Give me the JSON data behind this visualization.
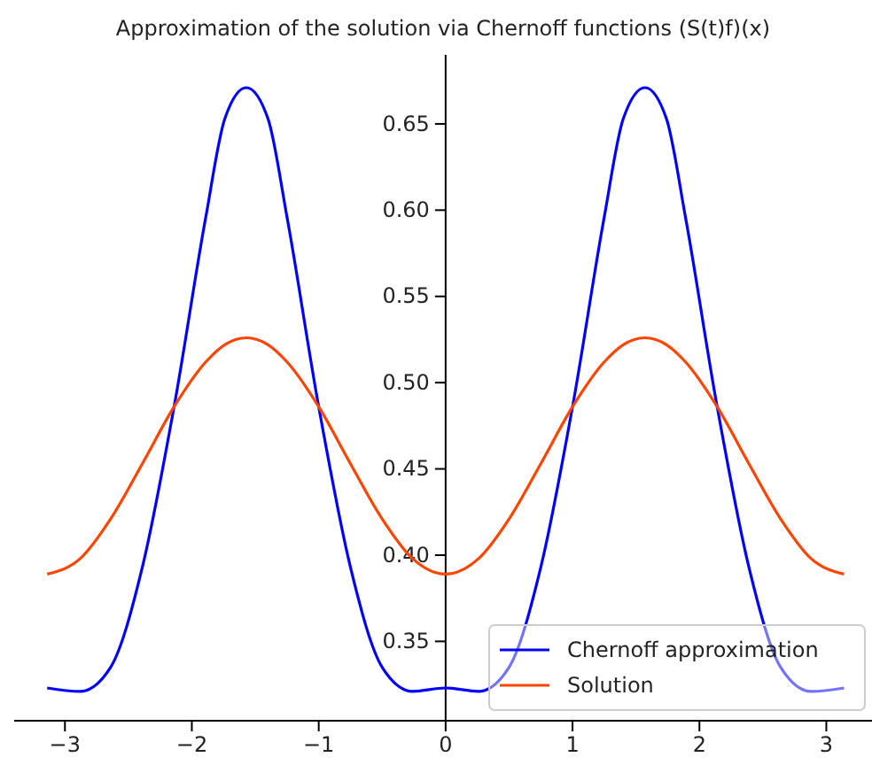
{
  "chart_data": {
    "type": "line",
    "title": "Approximation of the solution via Chernoff functions (S(t)f)(x)",
    "x": [
      -3.14,
      -2.88,
      -2.64,
      -2.39,
      -2.14,
      -1.89,
      -1.74,
      -1.571,
      -1.4,
      -1.25,
      -1.0,
      -0.75,
      -0.5,
      -0.26,
      0,
      0.26,
      0.5,
      0.75,
      1.0,
      1.25,
      1.4,
      1.571,
      1.74,
      1.89,
      2.14,
      2.39,
      2.64,
      2.88,
      3.14
    ],
    "series": [
      {
        "name": "Chernoff approximation",
        "color": "#0000ff",
        "values": [
          0.323,
          0.321,
          0.335,
          0.393,
          0.486,
          0.596,
          0.653,
          0.671,
          0.653,
          0.596,
          0.486,
          0.393,
          0.335,
          0.321,
          0.323,
          0.321,
          0.335,
          0.393,
          0.486,
          0.596,
          0.653,
          0.671,
          0.653,
          0.596,
          0.486,
          0.393,
          0.335,
          0.321,
          0.323
        ]
      },
      {
        "name": "Solution",
        "color": "#ff4500",
        "values": [
          0.389,
          0.398,
          0.421,
          0.453,
          0.486,
          0.512,
          0.522,
          0.526,
          0.522,
          0.512,
          0.486,
          0.453,
          0.421,
          0.398,
          0.389,
          0.398,
          0.421,
          0.453,
          0.486,
          0.512,
          0.522,
          0.526,
          0.522,
          0.512,
          0.486,
          0.453,
          0.421,
          0.398,
          0.389
        ]
      }
    ],
    "xlim": [
      -3.4,
      3.36
    ],
    "ylim": [
      0.304,
      0.69
    ],
    "xticks": [
      {
        "value": -3,
        "label": "−3"
      },
      {
        "value": -2,
        "label": "−2"
      },
      {
        "value": -1,
        "label": "−1"
      },
      0,
      1,
      2,
      3
    ],
    "yticks": [
      {
        "value": 0.35,
        "label": "0.35"
      },
      {
        "value": 0.4,
        "label": "0.40"
      },
      {
        "value": 0.45,
        "label": "0.45"
      },
      {
        "value": 0.5,
        "label": "0.50"
      },
      {
        "value": 0.55,
        "label": "0.55"
      },
      {
        "value": 0.6,
        "label": "0.60"
      },
      {
        "value": 0.65,
        "label": "0.65"
      }
    ],
    "grid": false,
    "legend": "bottom right",
    "line_style": "solid",
    "marker": "none"
  }
}
